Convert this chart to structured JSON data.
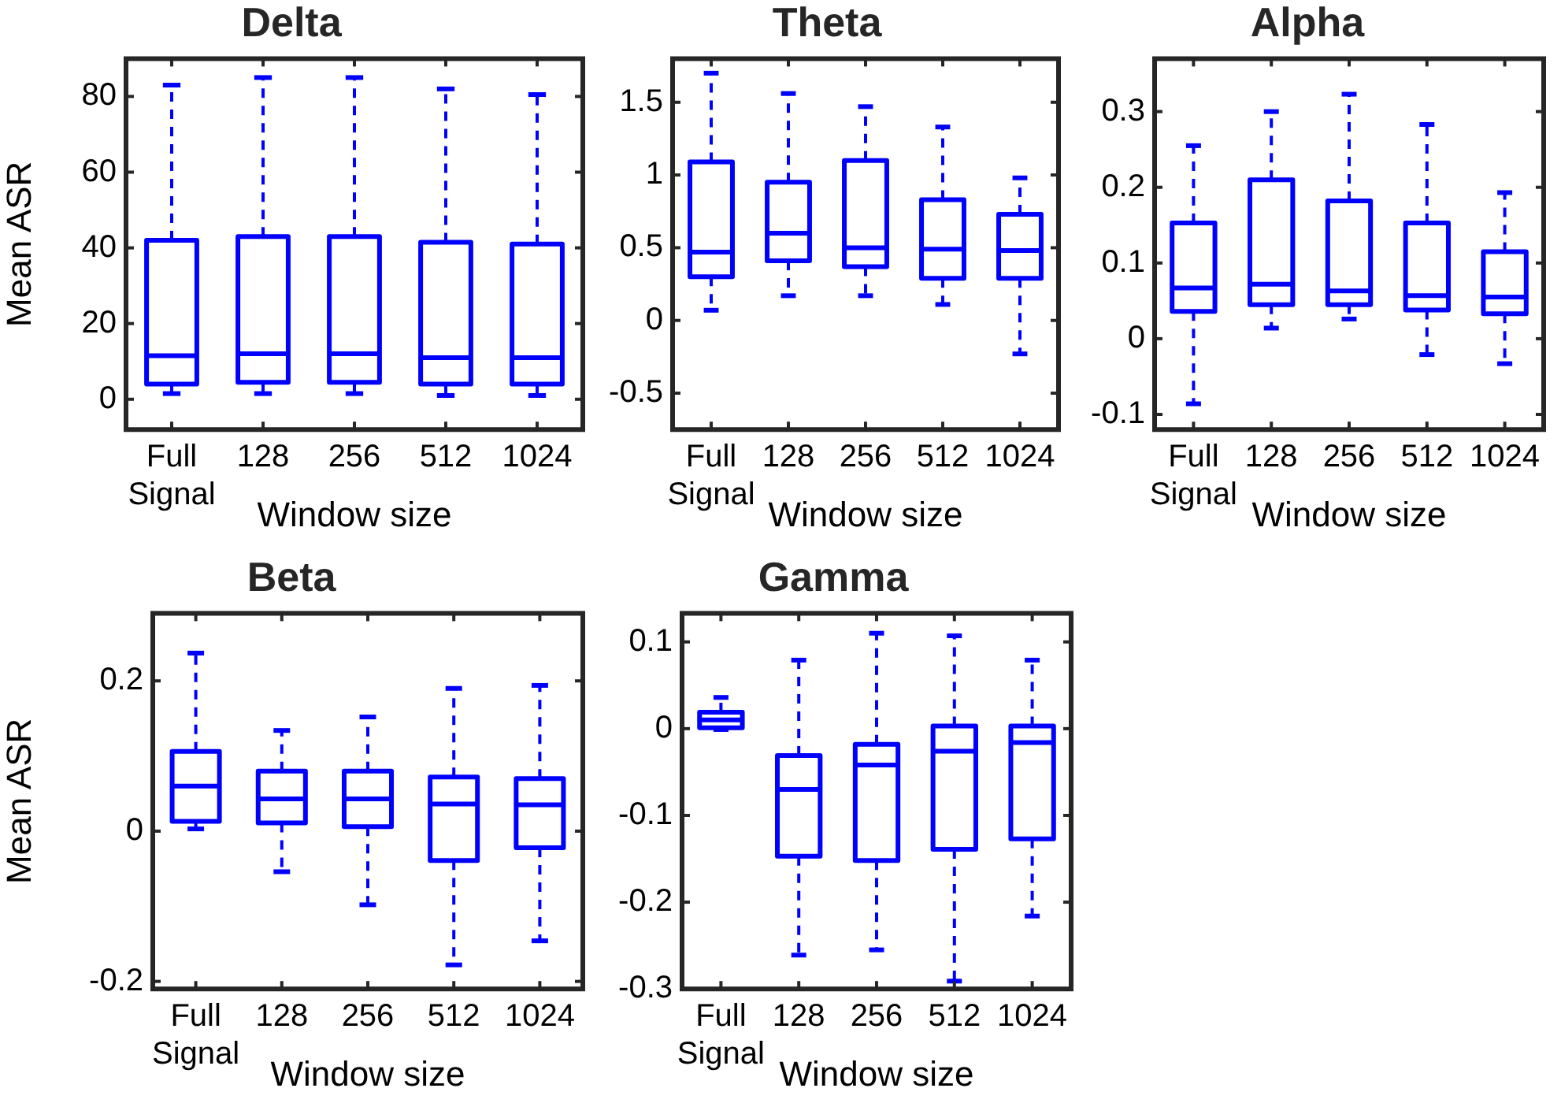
{
  "chart_data": [
    {
      "type": "box",
      "title": "Delta",
      "ylabel": "Mean ASR",
      "xlabel": "Window size",
      "categories": [
        "Full Signal",
        "128",
        "256",
        "512",
        "1024"
      ],
      "color": "#0000ff",
      "grid": false,
      "ylim": [
        -8,
        90
      ],
      "yticks": [
        0,
        20,
        40,
        60,
        80
      ],
      "boxes": [
        {
          "low": 1.5,
          "q1": 4,
          "median": 11.5,
          "q3": 42,
          "high": 83
        },
        {
          "low": 1.5,
          "q1": 4.5,
          "median": 12,
          "q3": 43,
          "high": 85
        },
        {
          "low": 1.5,
          "q1": 4.5,
          "median": 12,
          "q3": 43,
          "high": 85
        },
        {
          "low": 1,
          "q1": 4,
          "median": 11,
          "q3": 41.5,
          "high": 82
        },
        {
          "low": 1,
          "q1": 4,
          "median": 11,
          "q3": 41,
          "high": 80.5
        }
      ]
    },
    {
      "type": "box",
      "title": "Theta",
      "xlabel": "Window size",
      "categories": [
        "Full Signal",
        "128",
        "256",
        "512",
        "1024"
      ],
      "color": "#0000ff",
      "grid": false,
      "ylim": [
        -0.75,
        1.8
      ],
      "yticks": [
        -0.5,
        0,
        0.5,
        1,
        1.5
      ],
      "boxes": [
        {
          "low": 0.07,
          "q1": 0.3,
          "median": 0.47,
          "q3": 1.09,
          "high": 1.7
        },
        {
          "low": 0.17,
          "q1": 0.41,
          "median": 0.6,
          "q3": 0.95,
          "high": 1.56
        },
        {
          "low": 0.17,
          "q1": 0.37,
          "median": 0.5,
          "q3": 1.1,
          "high": 1.47
        },
        {
          "low": 0.11,
          "q1": 0.29,
          "median": 0.49,
          "q3": 0.83,
          "high": 1.33
        },
        {
          "low": -0.23,
          "q1": 0.29,
          "median": 0.48,
          "q3": 0.73,
          "high": 0.98
        }
      ]
    },
    {
      "type": "box",
      "title": "Alpha",
      "xlabel": "Window size",
      "categories": [
        "Full Signal",
        "128",
        "256",
        "512",
        "1024"
      ],
      "color": "#0000ff",
      "grid": false,
      "ylim": [
        -0.12,
        0.37
      ],
      "yticks": [
        -0.1,
        0,
        0.1,
        0.2,
        0.3
      ],
      "boxes": [
        {
          "low": -0.086,
          "q1": 0.036,
          "median": 0.067,
          "q3": 0.153,
          "high": 0.255
        },
        {
          "low": 0.014,
          "q1": 0.045,
          "median": 0.072,
          "q3": 0.21,
          "high": 0.3
        },
        {
          "low": 0.026,
          "q1": 0.045,
          "median": 0.063,
          "q3": 0.182,
          "high": 0.323
        },
        {
          "low": -0.021,
          "q1": 0.038,
          "median": 0.057,
          "q3": 0.153,
          "high": 0.283
        },
        {
          "low": -0.033,
          "q1": 0.033,
          "median": 0.055,
          "q3": 0.115,
          "high": 0.193
        }
      ]
    },
    {
      "type": "box",
      "title": "Beta",
      "ylabel": "Mean ASR",
      "xlabel": "Window size",
      "categories": [
        "Full Signal",
        "128",
        "256",
        "512",
        "1024"
      ],
      "color": "#0000ff",
      "grid": false,
      "ylim": [
        -0.21,
        0.29
      ],
      "yticks": [
        -0.2,
        0,
        0.2
      ],
      "boxes": [
        {
          "low": 0.003,
          "q1": 0.013,
          "median": 0.06,
          "q3": 0.106,
          "high": 0.237
        },
        {
          "low": -0.054,
          "q1": 0.011,
          "median": 0.043,
          "q3": 0.08,
          "high": 0.134
        },
        {
          "low": -0.098,
          "q1": 0.006,
          "median": 0.043,
          "q3": 0.08,
          "high": 0.152
        },
        {
          "low": -0.178,
          "q1": -0.039,
          "median": 0.036,
          "q3": 0.072,
          "high": 0.19
        },
        {
          "low": -0.146,
          "q1": -0.022,
          "median": 0.035,
          "q3": 0.07,
          "high": 0.194
        }
      ]
    },
    {
      "type": "box",
      "title": "Gamma",
      "xlabel": "Window size",
      "categories": [
        "Full Signal",
        "128",
        "256",
        "512",
        "1024"
      ],
      "color": "#0000ff",
      "grid": false,
      "ylim": [
        -0.3,
        0.133
      ],
      "yticks": [
        -0.3,
        -0.2,
        -0.1,
        0,
        0.1
      ],
      "boxes": [
        {
          "low": -0.001,
          "q1": 0.001,
          "median": 0.01,
          "q3": 0.019,
          "high": 0.036
        },
        {
          "low": -0.261,
          "q1": -0.147,
          "median": -0.07,
          "q3": -0.031,
          "high": 0.079
        },
        {
          "low": -0.255,
          "q1": -0.152,
          "median": -0.042,
          "q3": -0.018,
          "high": 0.11
        },
        {
          "low": -0.291,
          "q1": -0.139,
          "median": -0.026,
          "q3": 0.003,
          "high": 0.107
        },
        {
          "low": -0.216,
          "q1": -0.127,
          "median": -0.016,
          "q3": 0.003,
          "high": 0.079
        }
      ]
    }
  ]
}
